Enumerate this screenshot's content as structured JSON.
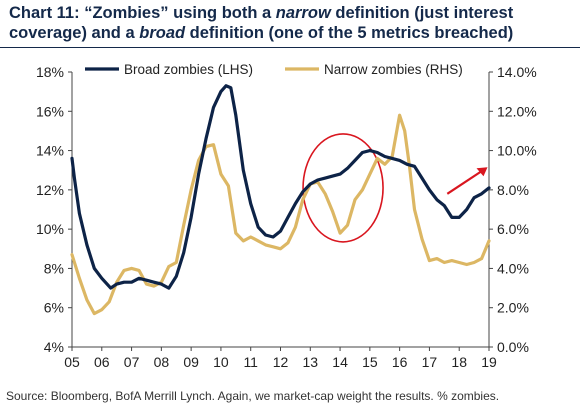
{
  "title_parts": {
    "p1": "Chart 11: “Zombies” using both a ",
    "p2": "narrow",
    "p3": " definition (just interest coverage) and a ",
    "p4": "broad",
    "p5": " definition (one of the 5 metrics breached)"
  },
  "source": "Source: Bloomberg, BofA Merrill Lynch. Again, we market-cap weight the results. % zombies.",
  "colors": {
    "broad": "#0d2347",
    "narrow": "#dcb764",
    "annotation": "#d9161f",
    "axis": "#444444"
  },
  "chart_data": {
    "type": "line",
    "x_tick_labels": [
      "05",
      "06",
      "07",
      "08",
      "09",
      "10",
      "11",
      "12",
      "13",
      "14",
      "15",
      "16",
      "17",
      "18",
      "19"
    ],
    "xlim": [
      2005,
      2019
    ],
    "left_axis": {
      "label": "",
      "ylim": [
        4,
        18
      ],
      "ticks": [
        "4%",
        "6%",
        "8%",
        "10%",
        "12%",
        "14%",
        "16%",
        "18%"
      ]
    },
    "right_axis": {
      "label": "",
      "ylim": [
        0,
        14
      ],
      "ticks": [
        "0.0%",
        "2.0%",
        "4.0%",
        "6.0%",
        "8.0%",
        "10.0%",
        "12.0%",
        "14.0%"
      ]
    },
    "legend_position": "top",
    "grid": false,
    "series": [
      {
        "name": "Broad zombies (LHS)",
        "axis": "left",
        "x": [
          2005.0,
          2005.08,
          2005.25,
          2005.5,
          2005.75,
          2006.0,
          2006.3,
          2006.5,
          2006.75,
          2007.0,
          2007.25,
          2007.5,
          2007.75,
          2008.0,
          2008.25,
          2008.5,
          2008.75,
          2009.0,
          2009.25,
          2009.5,
          2009.75,
          2010.0,
          2010.17,
          2010.33,
          2010.5,
          2010.75,
          2011.0,
          2011.25,
          2011.5,
          2011.75,
          2012.0,
          2012.25,
          2012.5,
          2012.75,
          2013.0,
          2013.25,
          2013.5,
          2013.75,
          2014.0,
          2014.25,
          2014.5,
          2014.75,
          2015.0,
          2015.25,
          2015.5,
          2015.75,
          2016.0,
          2016.25,
          2016.5,
          2016.75,
          2017.0,
          2017.25,
          2017.5,
          2017.75,
          2018.0,
          2018.25,
          2018.5,
          2018.75,
          2019.0
        ],
        "y": [
          13.6,
          12.6,
          10.8,
          9.2,
          8.0,
          7.5,
          7.0,
          7.2,
          7.3,
          7.3,
          7.5,
          7.4,
          7.3,
          7.2,
          7.0,
          7.6,
          8.8,
          10.6,
          12.8,
          14.6,
          16.2,
          17.0,
          17.3,
          17.2,
          15.8,
          13.0,
          11.3,
          10.1,
          9.7,
          9.6,
          9.9,
          10.6,
          11.3,
          11.9,
          12.3,
          12.5,
          12.6,
          12.7,
          12.8,
          13.1,
          13.5,
          13.9,
          14.0,
          13.9,
          13.7,
          13.6,
          13.5,
          13.3,
          13.2,
          12.6,
          12.0,
          11.5,
          11.2,
          10.6,
          10.6,
          11.0,
          11.6,
          11.8,
          12.1
        ]
      },
      {
        "name": "Narrow zombies (RHS)",
        "axis": "right",
        "x": [
          2005.0,
          2005.25,
          2005.5,
          2005.75,
          2006.0,
          2006.25,
          2006.5,
          2006.75,
          2007.0,
          2007.25,
          2007.5,
          2007.75,
          2008.0,
          2008.25,
          2008.5,
          2008.75,
          2009.0,
          2009.25,
          2009.5,
          2009.75,
          2010.0,
          2010.25,
          2010.5,
          2010.75,
          2011.0,
          2011.25,
          2011.5,
          2011.75,
          2012.0,
          2012.25,
          2012.5,
          2012.75,
          2013.0,
          2013.25,
          2013.5,
          2013.75,
          2014.0,
          2014.25,
          2014.5,
          2014.75,
          2015.0,
          2015.25,
          2015.5,
          2015.75,
          2016.0,
          2016.17,
          2016.33,
          2016.5,
          2016.75,
          2017.0,
          2017.25,
          2017.5,
          2017.75,
          2018.0,
          2018.25,
          2018.5,
          2018.75,
          2019.0
        ],
        "y": [
          4.7,
          3.5,
          2.4,
          1.7,
          1.9,
          2.3,
          3.3,
          3.9,
          4.0,
          3.9,
          3.2,
          3.1,
          3.3,
          4.1,
          4.3,
          6.2,
          8.0,
          9.5,
          10.2,
          10.3,
          8.8,
          8.2,
          5.8,
          5.4,
          5.6,
          5.4,
          5.2,
          5.1,
          5.0,
          5.3,
          6.1,
          7.5,
          8.3,
          8.4,
          7.8,
          6.9,
          5.8,
          6.2,
          7.5,
          8.0,
          8.8,
          9.6,
          9.3,
          9.7,
          11.8,
          11.0,
          9.2,
          7.0,
          5.5,
          4.4,
          4.5,
          4.3,
          4.4,
          4.3,
          4.2,
          4.3,
          4.5,
          5.4
        ]
      }
    ]
  }
}
